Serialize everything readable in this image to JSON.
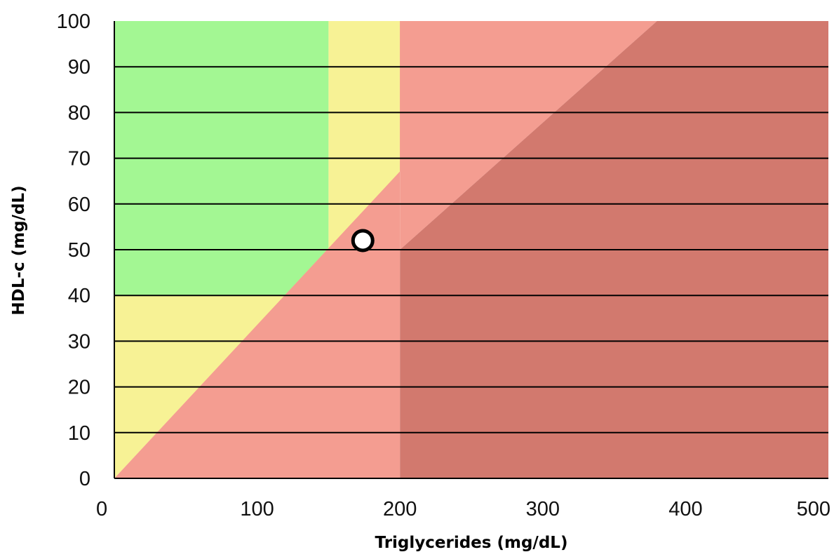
{
  "chart_data": {
    "type": "scatter",
    "title": "",
    "xlabel": "Triglycerides (mg/dL)",
    "ylabel": "HDL-c (mg/dL)",
    "xlim": [
      0,
      500
    ],
    "ylim": [
      0,
      100
    ],
    "x_ticks": [
      0,
      100,
      200,
      300,
      400,
      500
    ],
    "y_ticks": [
      0,
      10,
      20,
      30,
      40,
      50,
      60,
      70,
      80,
      90,
      100
    ],
    "grid": "horizontal",
    "points": [
      {
        "x": 174,
        "y": 52
      }
    ],
    "regions": [
      {
        "color": "#a3f793",
        "polygon": [
          [
            0,
            40
          ],
          [
            0,
            100
          ],
          [
            150,
            100
          ],
          [
            150,
            50
          ],
          [
            121,
            40
          ]
        ]
      },
      {
        "color": "#f7f295",
        "polygon": [
          [
            0,
            0
          ],
          [
            0,
            40
          ],
          [
            121,
            40
          ],
          [
            150,
            50
          ],
          [
            150,
            100
          ],
          [
            200,
            100
          ],
          [
            200,
            67
          ]
        ]
      },
      {
        "color": "#fddb8c",
        "polygon": [
          [
            0,
            0
          ],
          [
            200,
            67
          ],
          [
            200,
            100
          ],
          [
            298,
            100
          ]
        ]
      },
      {
        "color": "#f49d91",
        "polygon": [
          [
            0,
            0
          ],
          [
            298,
            100
          ],
          [
            200,
            100
          ],
          [
            200,
            0
          ]
        ]
      },
      {
        "color": "#f49d91",
        "polygon": [
          [
            200,
            0
          ],
          [
            200,
            100
          ],
          [
            380,
            100
          ],
          [
            200,
            50
          ]
        ]
      },
      {
        "color": "#d2796e",
        "polygon": [
          [
            200,
            0
          ],
          [
            200,
            50
          ],
          [
            380,
            100
          ],
          [
            500,
            100
          ],
          [
            500,
            0
          ]
        ]
      }
    ],
    "colors": {
      "gridline": "#000000",
      "marker_fill": "#ffffff",
      "marker_stroke": "#000000"
    }
  }
}
